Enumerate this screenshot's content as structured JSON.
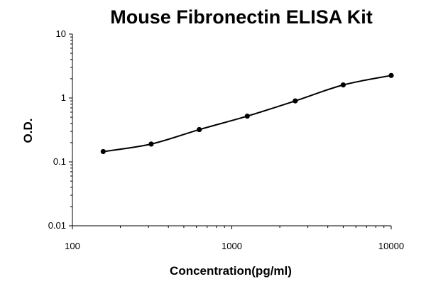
{
  "chart_data": {
    "type": "scatter",
    "title": "Mouse Fibronectin ELISA Kit",
    "xlabel": "Concentration(pg/ml)",
    "ylabel": "O.D.",
    "x_scale": "log",
    "y_scale": "log",
    "xlim": [
      100,
      10000
    ],
    "ylim": [
      0.01,
      10
    ],
    "x_ticks": [
      "100",
      "1000",
      "10000"
    ],
    "y_ticks": [
      "0.01",
      "0.1",
      "1",
      "10"
    ],
    "grid": false,
    "legend": "none",
    "series": [
      {
        "x": [
          156,
          312,
          625,
          1250,
          2500,
          5000,
          10000
        ],
        "y": [
          0.145,
          0.19,
          0.32,
          0.52,
          0.9,
          1.6,
          2.25
        ],
        "fit": "smooth curve"
      }
    ],
    "colors": {
      "marker": "#000000",
      "curve": "#000000",
      "axis": "#000000"
    }
  }
}
